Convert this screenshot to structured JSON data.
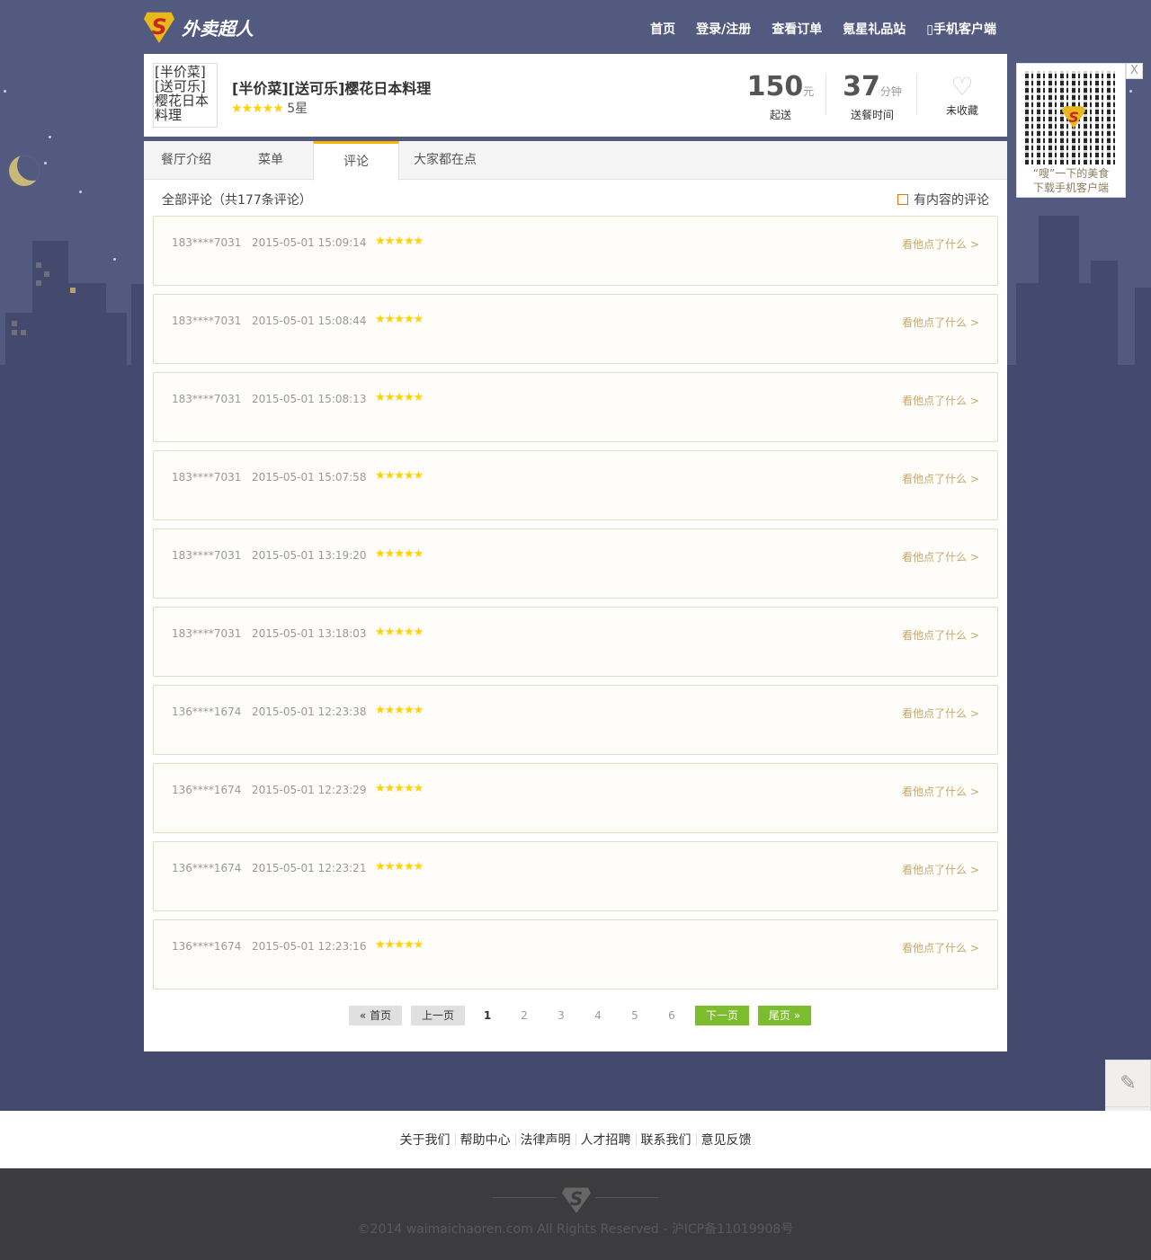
{
  "header": {
    "brand": "外卖超人",
    "nav": [
      "首页",
      "登录/注册",
      "查看订单",
      "氪星礼品站",
      "手机客户端"
    ]
  },
  "restaurant": {
    "image_alt": "[半价菜][送可乐]樱花日本料理",
    "name": "[半价菜][送可乐]樱花日本料理",
    "stars": "★★★★★",
    "rating": "5星",
    "min_order": {
      "value": "150",
      "unit": "元",
      "label": "起送"
    },
    "delivery_time": {
      "value": "37",
      "unit": "分钟",
      "label": "送餐时间"
    },
    "favorite": {
      "label": "未收藏",
      "icon": "heart-outline-icon"
    }
  },
  "tabs": [
    {
      "label": "餐厅介绍"
    },
    {
      "label": "菜单"
    },
    {
      "label": "评论",
      "active": true
    },
    {
      "label": "大家都在点"
    }
  ],
  "reviews_summary": "全部评论（共177条评论）",
  "filter_label": "有内容的评论",
  "reviews": [
    {
      "user": "183****7031",
      "time": "2015-05-01 15:09:14",
      "stars": "★★★★★",
      "link": "看他点了什么 >"
    },
    {
      "user": "183****7031",
      "time": "2015-05-01 15:08:44",
      "stars": "★★★★★",
      "link": "看他点了什么 >"
    },
    {
      "user": "183****7031",
      "time": "2015-05-01 15:08:13",
      "stars": "★★★★★",
      "link": "看他点了什么 >"
    },
    {
      "user": "183****7031",
      "time": "2015-05-01 15:07:58",
      "stars": "★★★★★",
      "link": "看他点了什么 >"
    },
    {
      "user": "183****7031",
      "time": "2015-05-01 13:19:20",
      "stars": "★★★★★",
      "link": "看他点了什么 >"
    },
    {
      "user": "183****7031",
      "time": "2015-05-01 13:18:03",
      "stars": "★★★★★",
      "link": "看他点了什么 >"
    },
    {
      "user": "136****1674",
      "time": "2015-05-01 12:23:38",
      "stars": "★★★★★",
      "link": "看他点了什么 >"
    },
    {
      "user": "136****1674",
      "time": "2015-05-01 12:23:29",
      "stars": "★★★★★",
      "link": "看他点了什么 >"
    },
    {
      "user": "136****1674",
      "time": "2015-05-01 12:23:21",
      "stars": "★★★★★",
      "link": "看他点了什么 >"
    },
    {
      "user": "136****1674",
      "time": "2015-05-01 12:23:16",
      "stars": "★★★★★",
      "link": "看他点了什么 >"
    }
  ],
  "pager": {
    "first": "« 首页",
    "prev": "上一页",
    "pages": [
      "1",
      "2",
      "3",
      "4",
      "5",
      "6"
    ],
    "current": "1",
    "next": "下一页",
    "last": "尾页 »"
  },
  "qr": {
    "line1": "“嗖”一下的美食",
    "line2": "下载手机客户端",
    "close": "X"
  },
  "footer": {
    "links": [
      "关于我们",
      "帮助中心",
      "法律声明",
      "人才招聘",
      "联系我们",
      "意见反馈"
    ],
    "copyright": "©2014 waimaichaoren.com All Rights Reserved - 沪ICP备11019908号"
  },
  "colors": {
    "bg": "#525a80",
    "accent_green": "#7cbd2d",
    "tab_accent": "#f7b500",
    "star": "#ffd200"
  }
}
